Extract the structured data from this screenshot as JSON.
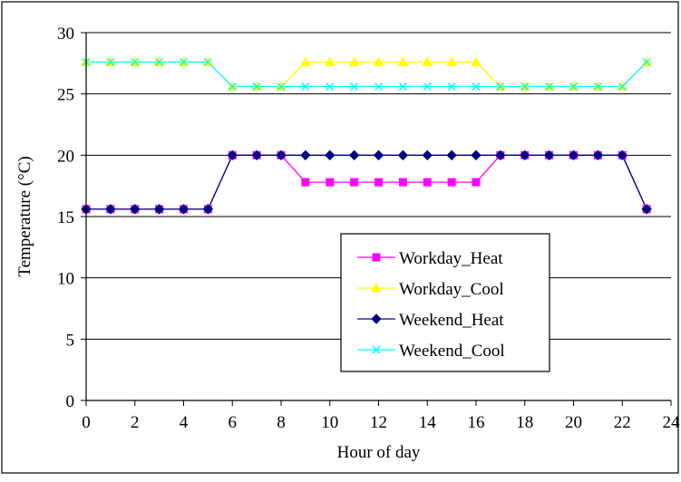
{
  "chart_data": {
    "type": "line",
    "title": "",
    "xlabel": "Hour of day",
    "ylabel": "Temperature (°C)",
    "xlim": [
      0,
      24
    ],
    "ylim": [
      0,
      30
    ],
    "xticks": [
      0,
      2,
      4,
      6,
      8,
      10,
      12,
      14,
      16,
      18,
      20,
      22,
      24
    ],
    "yticks": [
      0,
      5,
      10,
      15,
      20,
      25,
      30
    ],
    "grid": "horizontal",
    "legend_position": "center-right",
    "x": [
      0,
      1,
      2,
      3,
      4,
      5,
      6,
      7,
      8,
      9,
      10,
      11,
      12,
      13,
      14,
      15,
      16,
      17,
      18,
      19,
      20,
      21,
      22,
      23
    ],
    "series": [
      {
        "name": "Workday_Heat",
        "color": "#FF00FF",
        "marker": "square",
        "values": [
          15.6,
          15.6,
          15.6,
          15.6,
          15.6,
          15.6,
          20,
          20,
          20,
          17.8,
          17.8,
          17.8,
          17.8,
          17.8,
          17.8,
          17.8,
          17.8,
          20,
          20,
          20,
          20,
          20,
          20,
          15.6
        ]
      },
      {
        "name": "Workday_Cool",
        "color": "#FFFF00",
        "marker": "triangle",
        "values": [
          27.6,
          27.6,
          27.6,
          27.6,
          27.6,
          27.6,
          25.6,
          25.6,
          25.6,
          27.6,
          27.6,
          27.6,
          27.6,
          27.6,
          27.6,
          27.6,
          27.6,
          25.6,
          25.6,
          25.6,
          25.6,
          25.6,
          25.6,
          27.6
        ]
      },
      {
        "name": "Weekend_Heat",
        "color": "#000080",
        "marker": "diamond",
        "values": [
          15.6,
          15.6,
          15.6,
          15.6,
          15.6,
          15.6,
          20,
          20,
          20,
          20,
          20,
          20,
          20,
          20,
          20,
          20,
          20,
          20,
          20,
          20,
          20,
          20,
          20,
          15.6
        ]
      },
      {
        "name": "Weekend_Cool",
        "color": "#00FFFF",
        "marker": "x",
        "values": [
          27.6,
          27.6,
          27.6,
          27.6,
          27.6,
          27.6,
          25.6,
          25.6,
          25.6,
          25.6,
          25.6,
          25.6,
          25.6,
          25.6,
          25.6,
          25.6,
          25.6,
          25.6,
          25.6,
          25.6,
          25.6,
          25.6,
          25.6,
          27.6
        ]
      }
    ]
  }
}
